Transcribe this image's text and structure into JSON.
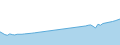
{
  "chart_data": {
    "type": "area",
    "values": [
      38,
      33,
      30,
      28,
      32,
      30,
      29,
      31,
      30,
      31,
      32,
      32,
      33,
      34,
      35,
      36,
      36,
      37,
      38,
      39,
      41,
      40,
      42,
      43,
      43,
      45,
      46,
      47,
      49,
      48,
      50,
      51,
      53,
      54,
      53,
      55,
      57,
      58,
      54,
      49,
      60,
      57,
      62,
      63,
      66,
      65,
      68,
      70,
      73,
      75
    ],
    "color": "#5aabda",
    "xlim": [
      0,
      49
    ],
    "ylim": [
      0,
      130
    ],
    "grid": false,
    "tick_labels": false
  }
}
